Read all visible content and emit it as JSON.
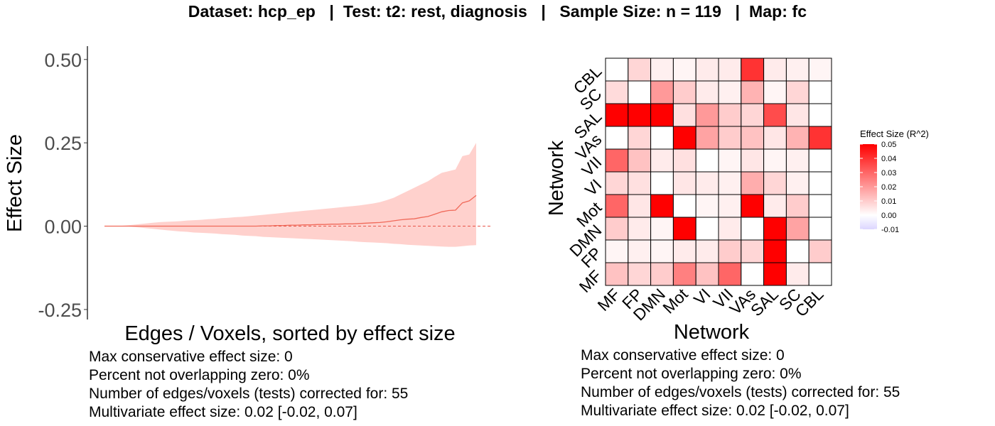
{
  "title": "Dataset: hcp_ep   |  Test: t2: rest, diagnosis   |   Sample Size: n = 119   |  Map: fc",
  "colors": {
    "line": "#f06a5a",
    "ribbon": "#ffd1cd",
    "zero_line": "#e8564a",
    "heat_low": "#dcd6ff",
    "heat_mid": "#ffffff",
    "heat_high": "#ff0000",
    "grid_line": "#000000"
  },
  "chart_data": [
    {
      "type": "line",
      "title": "",
      "xlabel": "Edges / Voxels, sorted by effect size",
      "ylabel": "Effect Size",
      "ylim": [
        -0.28,
        0.54
      ],
      "yticks": [
        0.5,
        0.25,
        0.0,
        -0.25
      ],
      "ytick_labels": [
        "0.50",
        "0.25",
        "0.00",
        "-0.25"
      ],
      "xlim": [
        1,
        55
      ],
      "x": [
        1,
        2,
        3,
        4,
        5,
        6,
        7,
        8,
        9,
        10,
        11,
        12,
        13,
        14,
        15,
        16,
        17,
        18,
        19,
        20,
        21,
        22,
        23,
        24,
        25,
        26,
        27,
        28,
        29,
        30,
        31,
        32,
        33,
        34,
        35,
        36,
        37,
        38,
        39,
        40,
        41,
        42,
        43,
        44,
        45,
        46,
        47,
        48,
        49,
        50,
        51,
        52,
        53,
        54,
        55
      ],
      "series": [
        {
          "values": [
            0.0,
            0.0,
            0.0,
            0.0,
            0.0,
            0.0,
            0.0,
            0.0,
            0.0,
            0.0,
            0.0,
            0.0,
            0.0,
            0.0,
            0.0,
            0.0,
            0.0,
            0.0,
            0.0,
            0.0,
            0.0,
            0.0,
            0.0,
            0.001,
            0.001,
            0.002,
            0.002,
            0.003,
            0.003,
            0.004,
            0.004,
            0.005,
            0.005,
            0.006,
            0.006,
            0.007,
            0.007,
            0.008,
            0.009,
            0.01,
            0.011,
            0.013,
            0.016,
            0.019,
            0.021,
            0.022,
            0.026,
            0.029,
            0.036,
            0.043,
            0.047,
            0.048,
            0.07,
            0.076,
            0.092
          ],
          "lower": [
            0.0,
            0.0,
            0.0,
            0.0,
            -0.002,
            -0.004,
            -0.006,
            -0.008,
            -0.01,
            -0.012,
            -0.014,
            -0.016,
            -0.017,
            -0.019,
            -0.02,
            -0.021,
            -0.022,
            -0.024,
            -0.025,
            -0.026,
            -0.028,
            -0.029,
            -0.03,
            -0.032,
            -0.033,
            -0.034,
            -0.035,
            -0.036,
            -0.037,
            -0.038,
            -0.039,
            -0.04,
            -0.041,
            -0.042,
            -0.043,
            -0.044,
            -0.045,
            -0.047,
            -0.048,
            -0.049,
            -0.05,
            -0.051,
            -0.053,
            -0.054,
            -0.056,
            -0.057,
            -0.058,
            -0.059,
            -0.06,
            -0.061,
            -0.062,
            -0.062,
            -0.06,
            -0.058,
            -0.057
          ],
          "upper": [
            0.0,
            0.0,
            0.0,
            0.002,
            0.004,
            0.006,
            0.008,
            0.01,
            0.012,
            0.013,
            0.014,
            0.015,
            0.017,
            0.018,
            0.019,
            0.021,
            0.022,
            0.024,
            0.025,
            0.027,
            0.028,
            0.03,
            0.032,
            0.034,
            0.036,
            0.038,
            0.04,
            0.042,
            0.044,
            0.046,
            0.048,
            0.05,
            0.052,
            0.054,
            0.056,
            0.058,
            0.06,
            0.062,
            0.065,
            0.068,
            0.072,
            0.078,
            0.085,
            0.095,
            0.105,
            0.115,
            0.125,
            0.135,
            0.148,
            0.16,
            0.165,
            0.17,
            0.21,
            0.215,
            0.25
          ]
        }
      ],
      "zero_line": 0
    },
    {
      "type": "heatmap",
      "title": "",
      "xlabel": "Network",
      "ylabel": "Network",
      "x_categories": [
        "MF",
        "FP",
        "DMN",
        "Mot",
        "VI",
        "VII",
        "VAs",
        "SAL",
        "SC",
        "CBL"
      ],
      "y_categories_top_to_bottom": [
        "CBL",
        "SC",
        "SAL",
        "VAs",
        "VII",
        "VI",
        "Mot",
        "DMN",
        "FP",
        "MF"
      ],
      "values_top_to_bottom": [
        [
          null,
          0.008,
          0.003,
          0.002,
          0.004,
          0.004,
          0.04,
          0.004,
          0.003,
          0.002
        ],
        [
          0.007,
          0.0,
          0.02,
          0.01,
          0.004,
          0.003,
          0.015,
          0.002,
          0.008,
          null
        ],
        [
          0.05,
          0.05,
          0.05,
          0.006,
          0.02,
          0.01,
          0.008,
          0.035,
          0.005,
          null
        ],
        [
          0.0,
          0.008,
          0.0,
          0.05,
          0.018,
          0.01,
          0.012,
          0.005,
          0.015,
          0.04
        ],
        [
          0.03,
          0.012,
          0.004,
          0.006,
          0.0,
          0.002,
          0.005,
          0.002,
          0.003,
          null
        ],
        [
          0.008,
          0.006,
          0.0,
          0.005,
          0.004,
          0.003,
          0.016,
          0.008,
          0.003,
          null
        ],
        [
          0.03,
          0.005,
          0.05,
          0.0,
          0.002,
          0.003,
          0.05,
          0.004,
          0.01,
          null
        ],
        [
          0.01,
          0.004,
          0.002,
          0.05,
          0.0,
          0.004,
          0.0,
          0.05,
          0.018,
          null
        ],
        [
          0.002,
          0.003,
          0.002,
          0.004,
          0.004,
          0.01,
          0.008,
          0.05,
          0.0,
          0.01
        ],
        [
          0.012,
          0.008,
          0.01,
          0.025,
          0.012,
          0.03,
          null,
          0.05,
          0.004,
          null
        ]
      ],
      "zlim": [
        -0.01,
        0.05
      ],
      "legend": {
        "title": "Effect Size (R^2)",
        "ticks": [
          0.05,
          0.04,
          0.03,
          0.02,
          0.01,
          0.0,
          -0.01
        ],
        "tick_labels": [
          "0.05",
          "0.04",
          "0.03",
          "0.02",
          "0.01",
          "0.00",
          "-0.01"
        ],
        "position": "right"
      }
    }
  ],
  "stats_left": [
    "Max conservative effect size: 0",
    "Percent not overlapping zero: 0%",
    "Number of edges/voxels (tests) corrected for: 55",
    "Multivariate effect size: 0.02 [-0.02, 0.07]"
  ],
  "stats_right": [
    "Max conservative effect size: 0",
    "Percent not overlapping zero: 0%",
    "Number of edges/voxels (tests) corrected for: 55",
    "Multivariate effect size: 0.02 [-0.02, 0.07]"
  ]
}
